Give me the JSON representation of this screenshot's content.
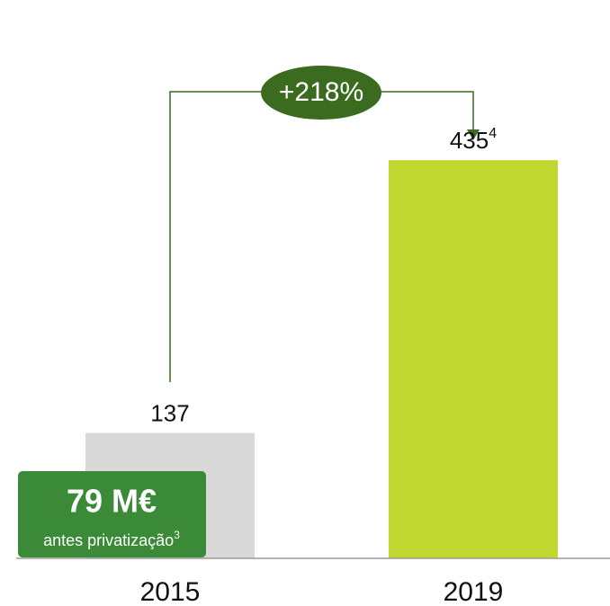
{
  "chart_data": {
    "type": "bar",
    "categories": [
      "2015",
      "2019"
    ],
    "values": [
      137,
      435
    ],
    "colors": [
      "#d9d9d9",
      "#c0d72f"
    ],
    "value_footnotes": [
      null,
      "4"
    ],
    "growth_label": "+218%",
    "callout": {
      "headline": "79 M€",
      "text": "antes privatização",
      "footnote": "3"
    }
  }
}
